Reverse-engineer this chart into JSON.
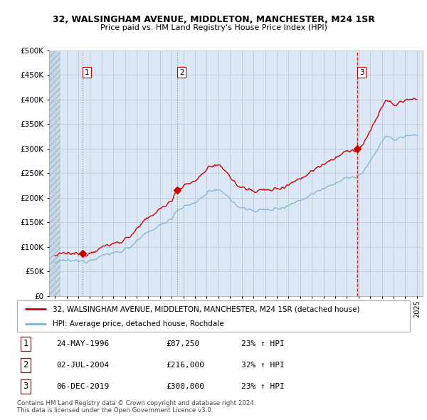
{
  "title1": "32, WALSINGHAM AVENUE, MIDDLETON, MANCHESTER, M24 1SR",
  "title2": "Price paid vs. HM Land Registry's House Price Index (HPI)",
  "ylim": [
    0,
    500000
  ],
  "yticks": [
    0,
    50000,
    100000,
    150000,
    200000,
    250000,
    300000,
    350000,
    400000,
    450000,
    500000
  ],
  "ytick_labels": [
    "£0",
    "£50K",
    "£100K",
    "£150K",
    "£200K",
    "£250K",
    "£300K",
    "£350K",
    "£400K",
    "£450K",
    "£500K"
  ],
  "xlim_start": 1993.5,
  "xlim_end": 2025.5,
  "hatch_end": 1994.5,
  "sales": [
    {
      "date_num": 1996.38,
      "price": 87250,
      "label": "1"
    },
    {
      "date_num": 2004.5,
      "price": 216000,
      "label": "2"
    },
    {
      "date_num": 2019.92,
      "price": 300000,
      "label": "3"
    }
  ],
  "legend_line1": "32, WALSINGHAM AVENUE, MIDDLETON, MANCHESTER, M24 1SR (detached house)",
  "legend_line2": "HPI: Average price, detached house, Rochdale",
  "table_rows": [
    {
      "num": "1",
      "date": "24-MAY-1996",
      "price": "£87,250",
      "change": "23% ↑ HPI"
    },
    {
      "num": "2",
      "date": "02-JUL-2004",
      "price": "£216,000",
      "change": "32% ↑ HPI"
    },
    {
      "num": "3",
      "date": "06-DEC-2019",
      "price": "£300,000",
      "change": "23% ↑ HPI"
    }
  ],
  "footer": "Contains HM Land Registry data © Crown copyright and database right 2024.\nThis data is licensed under the Open Government Licence v3.0.",
  "red_color": "#cc0000",
  "blue_color": "#7fb3d3",
  "bg_color": "#dce8f5",
  "grid_color": "#c0c8d8",
  "hatch_color": "#b8c8dc"
}
